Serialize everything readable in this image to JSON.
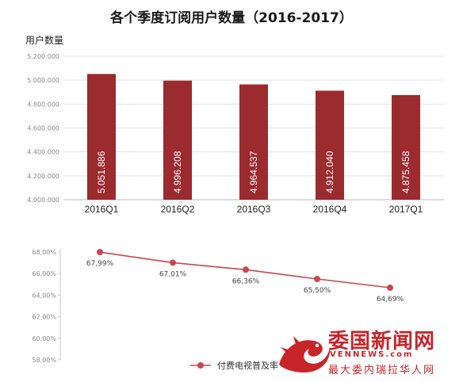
{
  "chart_data": [
    {
      "type": "bar",
      "title": "各个季度订阅用户数量（2016-2017）",
      "ylabel": "用户数量",
      "categories": [
        "2016Q1",
        "2016Q2",
        "2016Q3",
        "2016Q4",
        "2017Q1"
      ],
      "values": [
        5051886,
        4996208,
        4964537,
        4912040,
        4875458
      ],
      "value_labels": [
        "5.051.886",
        "4.996.208",
        "4.964.537",
        "4.912.040",
        "4.875.458"
      ],
      "ylim": [
        4000000,
        5200000
      ],
      "yticks": [
        4000000,
        4200000,
        4400000,
        4600000,
        4800000,
        5000000,
        5200000
      ],
      "ytick_labels": [
        "4.000.000",
        "4.200.000",
        "4.400.000",
        "4.600.000",
        "4.800.000",
        "5.000.000",
        "5.200.000"
      ],
      "bar_color": "#9b2b2e",
      "grid": true
    },
    {
      "type": "line",
      "series": [
        {
          "name": "付费电视普及率",
          "values": [
            67.99,
            67.01,
            66.36,
            65.5,
            64.69
          ],
          "value_labels": [
            "67,99%",
            "67,01%",
            "66,36%",
            "65,50%",
            "64,69%"
          ],
          "color": "#c8484e"
        }
      ],
      "ylim": [
        58,
        68
      ],
      "yticks": [
        58,
        60,
        62,
        64,
        66,
        68
      ],
      "ytick_labels": [
        "58,00%",
        "60,00%",
        "62,00%",
        "64,00%",
        "66,00%",
        "68,00%"
      ],
      "legend": "bottom",
      "grid": false
    }
  ],
  "watermark": {
    "main": "委国新闻网",
    "site": "VENNEWS.com",
    "sub": "最大委内瑞拉华人网"
  }
}
